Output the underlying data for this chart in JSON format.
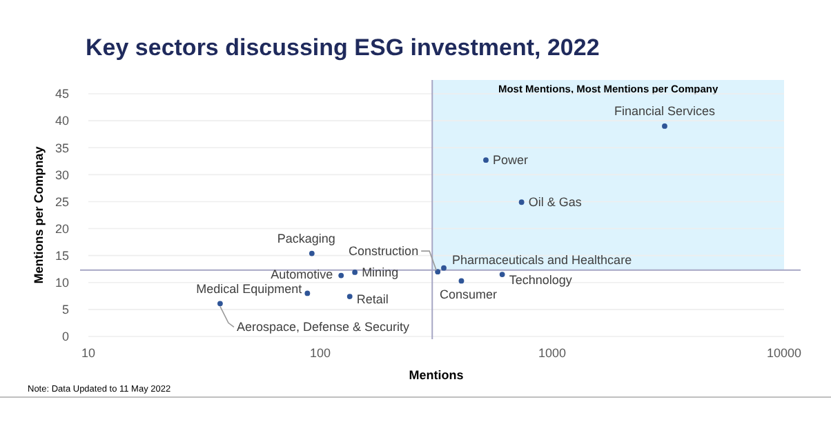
{
  "chart_data": {
    "type": "scatter",
    "title": "Key sectors discussing ESG investment, 2022",
    "xlabel": "Mentions",
    "ylabel": "Mentions per Compnay",
    "log": "x",
    "xlim": [
      10,
      10000
    ],
    "xticks": [
      10,
      100,
      1000,
      10000
    ],
    "ylim": [
      0,
      45
    ],
    "yticks": [
      0,
      5,
      10,
      15,
      20,
      25,
      30,
      35,
      40,
      45
    ],
    "grid": "y",
    "marker": "circle",
    "series": [
      {
        "name": "Financial Services",
        "color": "#2f5597",
        "x": [
          3055
        ],
        "values": [
          39.0
        ]
      },
      {
        "name": "Power",
        "color": "#2f5597",
        "x": [
          518
        ],
        "values": [
          32.7
        ]
      },
      {
        "name": "Oil & Gas",
        "color": "#2f5597",
        "x": [
          738
        ],
        "values": [
          24.9
        ]
      },
      {
        "name": "Pharmaceuticals and Healthcare",
        "color": "#2f5597",
        "x": [
          341
        ],
        "values": [
          12.7
        ]
      },
      {
        "name": "Construction",
        "color": "#2f5597",
        "x": [
          321
        ],
        "values": [
          12.0
        ]
      },
      {
        "name": "Consumer",
        "color": "#2f5597",
        "x": [
          406
        ],
        "values": [
          10.3
        ]
      },
      {
        "name": "Technology",
        "color": "#2f5597",
        "x": [
          609
        ],
        "values": [
          11.5
        ]
      },
      {
        "name": "Packaging",
        "color": "#2f5597",
        "x": [
          92
        ],
        "values": [
          15.4
        ]
      },
      {
        "name": "Automotive",
        "color": "#2f5597",
        "x": [
          123
        ],
        "values": [
          11.3
        ]
      },
      {
        "name": "Mining",
        "color": "#2f5597",
        "x": [
          141
        ],
        "values": [
          11.9
        ]
      },
      {
        "name": "Retail",
        "color": "#2f5597",
        "x": [
          134
        ],
        "values": [
          7.4
        ]
      },
      {
        "name": "Medical Equipment",
        "color": "#2f5597",
        "x": [
          88
        ],
        "values": [
          8.0
        ]
      },
      {
        "name": "Aerospace, Defense & Security",
        "color": "#2f5597",
        "x": [
          37
        ],
        "values": [
          6.1
        ]
      }
    ],
    "ref_lines": [
      {
        "axis": "x",
        "value": 304,
        "color": "#a6a6c4"
      },
      {
        "axis": "y",
        "value": 12.3,
        "color": "#a6a6c4"
      }
    ],
    "bands": [
      {
        "axis": "x",
        "from": 304,
        "to": 10000,
        "label": "Most Mentions, Most Mentions per Company",
        "color": "#ddf3fd"
      }
    ],
    "annotations": [
      "Note: Data Updated to 11 May 2022"
    ]
  }
}
